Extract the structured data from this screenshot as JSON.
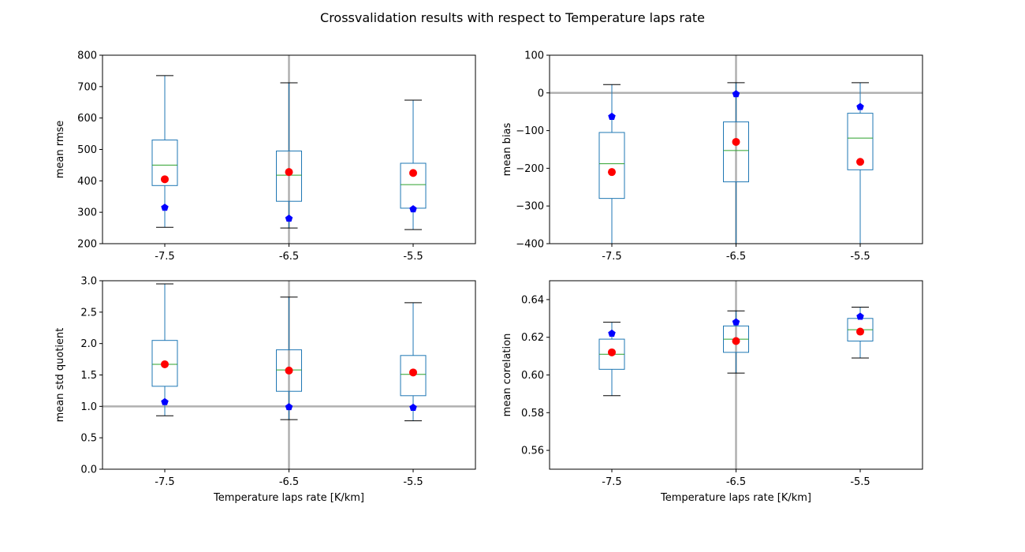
{
  "figure_title": "Crossvalidation results with respect to Temperature laps rate",
  "chart_data": [
    {
      "type": "box",
      "ylabel": "mean rmse",
      "xlabel": "",
      "categories": [
        "-7.5",
        "-6.5",
        "-5.5"
      ],
      "ylim": [
        200,
        800
      ],
      "yticks": [
        200,
        300,
        400,
        500,
        600,
        700,
        800
      ],
      "ytick_labels": [
        "200",
        "300",
        "400",
        "500",
        "600",
        "700",
        "800"
      ],
      "boxes": [
        {
          "whislo": 252,
          "q1": 385,
          "med": 450,
          "q3": 530,
          "whishi": 735
        },
        {
          "whislo": 250,
          "q1": 335,
          "med": 418,
          "q3": 495,
          "whishi": 712
        },
        {
          "whislo": 245,
          "q1": 313,
          "med": 388,
          "q3": 456,
          "whishi": 657
        }
      ],
      "red_points": [
        405,
        428,
        425
      ],
      "blue_points": [
        315,
        280,
        310
      ],
      "reference_vline": "-6.5",
      "reference_hline": null
    },
    {
      "type": "box",
      "ylabel": "mean bias",
      "xlabel": "",
      "categories": [
        "-7.5",
        "-6.5",
        "-5.5"
      ],
      "ylim": [
        -400,
        100
      ],
      "yticks": [
        -400,
        -300,
        -200,
        -100,
        0,
        100
      ],
      "ytick_labels": [
        "−400",
        "−300",
        "−200",
        "−100",
        "0",
        "100"
      ],
      "boxes": [
        {
          "whislo": -430,
          "q1": -280,
          "med": -188,
          "q3": -105,
          "whishi": 22
        },
        {
          "whislo": -430,
          "q1": -236,
          "med": -153,
          "q3": -77,
          "whishi": 27
        },
        {
          "whislo": -430,
          "q1": -204,
          "med": -120,
          "q3": -54,
          "whishi": 27
        }
      ],
      "red_points": [
        -210,
        -130,
        -183
      ],
      "blue_points": [
        -63,
        -3,
        -37
      ],
      "reference_vline": "-6.5",
      "reference_hline": 0
    },
    {
      "type": "box",
      "ylabel": "mean std quotient",
      "xlabel": "Temperature laps rate [K/km]",
      "categories": [
        "-7.5",
        "-6.5",
        "-5.5"
      ],
      "ylim": [
        0,
        3.0
      ],
      "yticks": [
        0,
        0.5,
        1.0,
        1.5,
        2.0,
        2.5,
        3.0
      ],
      "ytick_labels": [
        "0.0",
        "0.5",
        "1.0",
        "1.5",
        "2.0",
        "2.5",
        "3.0"
      ],
      "boxes": [
        {
          "whislo": 0.85,
          "q1": 1.32,
          "med": 1.67,
          "q3": 2.05,
          "whishi": 2.95
        },
        {
          "whislo": 0.79,
          "q1": 1.24,
          "med": 1.58,
          "q3": 1.9,
          "whishi": 2.74
        },
        {
          "whislo": 0.77,
          "q1": 1.17,
          "med": 1.51,
          "q3": 1.81,
          "whishi": 2.65
        }
      ],
      "red_points": [
        1.67,
        1.57,
        1.54
      ],
      "blue_points": [
        1.07,
        0.99,
        0.98
      ],
      "reference_vline": "-6.5",
      "reference_hline": 1.0
    },
    {
      "type": "box",
      "ylabel": "mean corelation",
      "xlabel": "Temperature laps rate [K/km]",
      "categories": [
        "-7.5",
        "-6.5",
        "-5.5"
      ],
      "ylim": [
        0.55,
        0.65
      ],
      "yticks": [
        0.56,
        0.58,
        0.6,
        0.62,
        0.64
      ],
      "ytick_labels": [
        "0.56",
        "0.58",
        "0.60",
        "0.62",
        "0.64"
      ],
      "boxes": [
        {
          "whislo": 0.589,
          "q1": 0.603,
          "med": 0.611,
          "q3": 0.619,
          "whishi": 0.628
        },
        {
          "whislo": 0.601,
          "q1": 0.612,
          "med": 0.619,
          "q3": 0.626,
          "whishi": 0.634
        },
        {
          "whislo": 0.609,
          "q1": 0.618,
          "med": 0.624,
          "q3": 0.63,
          "whishi": 0.636
        }
      ],
      "red_points": [
        0.612,
        0.618,
        0.623
      ],
      "blue_points": [
        0.622,
        0.628,
        0.631
      ],
      "reference_vline": "-6.5",
      "reference_hline": null
    }
  ],
  "colors": {
    "box": "#1f77b4",
    "median": "#2ca02c",
    "whisker_cap": "#000000",
    "red_marker": "#ff0000",
    "blue_marker": "#0000ff",
    "reference_line": "#b0b0b0"
  }
}
